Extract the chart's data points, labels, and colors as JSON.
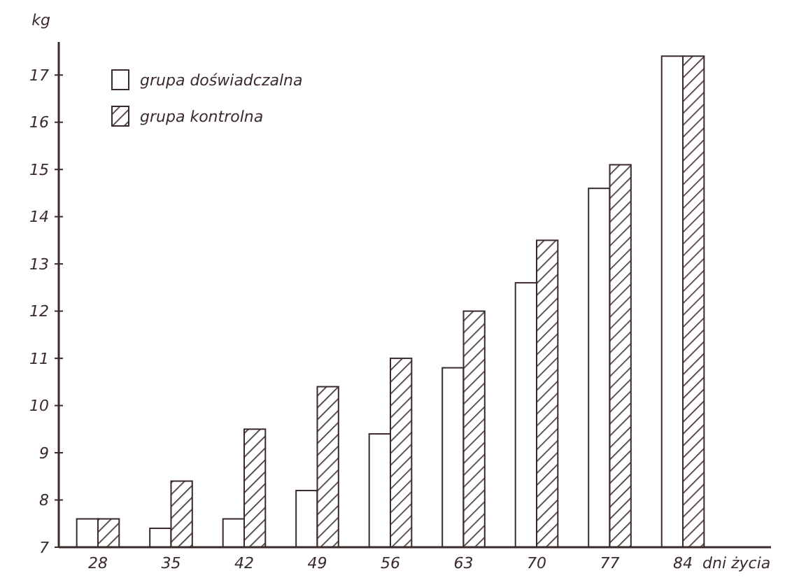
{
  "chart_data": {
    "type": "bar",
    "xlabel": "dni życia",
    "ylabel": "kg",
    "categories": [
      "28",
      "35",
      "42",
      "49",
      "56",
      "63",
      "70",
      "77",
      "84"
    ],
    "series": [
      {
        "name": "grupa doświadczalna",
        "color": "#ffffff",
        "values": [
          7.6,
          7.4,
          7.6,
          8.2,
          9.4,
          10.8,
          12.6,
          14.6,
          17.4
        ]
      },
      {
        "name": "grupa kontrolna",
        "color": "#3a2a2a",
        "values": [
          7.6,
          8.4,
          9.5,
          10.4,
          11.0,
          12.0,
          13.5,
          15.1,
          17.4
        ]
      }
    ],
    "ylim": [
      7,
      17.7
    ],
    "yticks": [
      7,
      8,
      9,
      10,
      11,
      12,
      13,
      14,
      15,
      16,
      17
    ],
    "grid": false,
    "legend": "top left"
  }
}
